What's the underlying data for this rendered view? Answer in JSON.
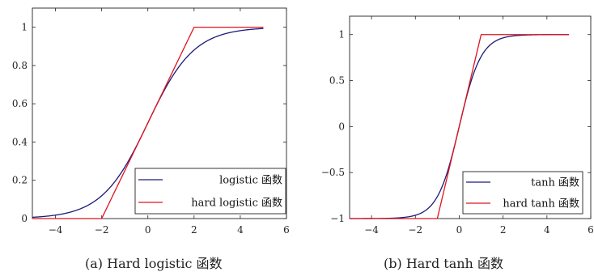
{
  "chart_data": [
    {
      "type": "line",
      "caption": "(a) Hard logistic 函数",
      "xlim": [
        -5,
        6
      ],
      "ylim": [
        0,
        1.1
      ],
      "xticks": [
        -4,
        -2,
        0,
        2,
        4,
        6
      ],
      "xtick_labels": [
        "−4",
        "−2",
        "0",
        "2",
        "4",
        "6"
      ],
      "yticks": [
        0,
        0.2,
        0.4,
        0.6,
        0.8,
        1
      ],
      "ytick_labels": [
        "0",
        "0.2",
        "0.4",
        "0.6",
        "0.8",
        "1"
      ],
      "grid": false,
      "legend_position": "bottom-right",
      "series": [
        {
          "name": "logistic 函数",
          "color": "#1a1a7a",
          "function": "logistic",
          "x_range": [
            -5,
            5
          ]
        },
        {
          "name": "hard logistic 函数",
          "color": "#e0141e",
          "function": "hard_logistic",
          "x_range": [
            -5,
            5
          ]
        }
      ]
    },
    {
      "type": "line",
      "caption": "(b) Hard tanh 函数",
      "xlim": [
        -5,
        6
      ],
      "ylim": [
        -1,
        1.2
      ],
      "xticks": [
        -4,
        -2,
        0,
        2,
        4,
        6
      ],
      "xtick_labels": [
        "−4",
        "−2",
        "0",
        "2",
        "4",
        "6"
      ],
      "yticks": [
        -1,
        -0.5,
        0,
        0.5,
        1
      ],
      "ytick_labels": [
        "−1",
        "−0.5",
        "0",
        "0.5",
        "1"
      ],
      "grid": false,
      "legend_position": "bottom-right",
      "series": [
        {
          "name": "tanh 函数",
          "color": "#1a1a7a",
          "function": "tanh",
          "x_range": [
            -5,
            5
          ]
        },
        {
          "name": "hard tanh 函数",
          "color": "#e0141e",
          "function": "hard_tanh",
          "x_range": [
            -5,
            5
          ]
        }
      ]
    }
  ]
}
